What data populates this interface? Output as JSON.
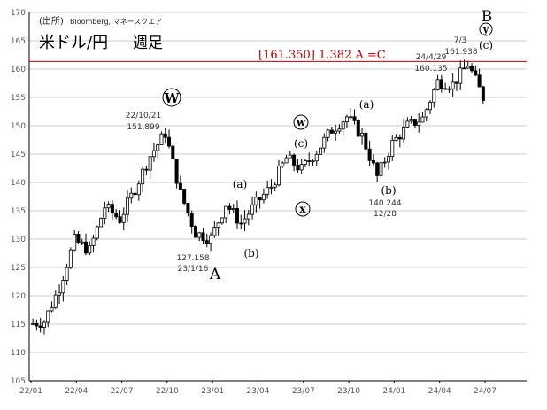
{
  "header": {
    "source_prefix": "(出所)",
    "source_names": "Bloomberg, マネースクエア",
    "title": "米ドル/円",
    "title_period": "週足",
    "resistance_label": "[161.350] 1.382 A =C"
  },
  "colors": {
    "candle": "#000000",
    "resistance_line": "#c00000",
    "resistance_text": "#c00000",
    "grid": "#bfbfbf"
  },
  "chart_data": {
    "type": "candlestick",
    "title": "米ドル/円 週足",
    "x_tick_labels": [
      "22/01",
      "22/04",
      "22/07",
      "22/10",
      "23/01",
      "23/04",
      "23/07",
      "23/10",
      "24/01",
      "24/04",
      "24/07"
    ],
    "ylim": [
      105,
      170
    ],
    "y_ticks": [
      105,
      110,
      115,
      120,
      125,
      130,
      135,
      140,
      145,
      150,
      155,
      160,
      165,
      170
    ],
    "grid": "horizontal",
    "resistance_level": 161.35,
    "series": [
      {
        "x": [
          "22/01",
          "22/02",
          "22/03",
          "22/04",
          "22/05",
          "22/06",
          "22/07",
          "22/08",
          "22/09",
          "22/10",
          "22/11",
          "22/12",
          "23/01",
          "23/02",
          "23/03",
          "23/04",
          "23/05",
          "23/06",
          "23/07",
          "23/08",
          "23/09",
          "23/10",
          "23/11",
          "23/12",
          "24/01",
          "24/02",
          "24/03",
          "24/04",
          "24/05",
          "24/06",
          "24/07"
        ],
        "values": [
          115.0,
          115.5,
          121.5,
          129.8,
          128.0,
          135.7,
          133.5,
          138.9,
          144.7,
          148.7,
          138.1,
          131.1,
          130.1,
          136.2,
          132.8,
          136.3,
          139.3,
          144.3,
          142.3,
          145.5,
          149.3,
          151.6,
          148.2,
          141.0,
          146.9,
          150.0,
          151.3,
          157.8,
          157.3,
          160.9,
          155.0
        ]
      }
    ],
    "annotations": {
      "wave_W": "W",
      "wave_W_date": "22/10/21",
      "wave_W_value": "151.899",
      "wave_A_date": "23/1/16",
      "wave_A_value": "127.158",
      "wave_A": "A",
      "wave_a1": "(a)",
      "wave_b1": "(b)",
      "wave_w_small": "w",
      "wave_c1": "(c)",
      "wave_x_small": "x",
      "wave_a2": "(a)",
      "wave_b2": "(b)",
      "wave_b2_value": "140.244",
      "wave_b2_date": "12/28",
      "peak_date": "24/4/29",
      "peak_value": "160.135",
      "top_date": "7/3",
      "top_value": "161.938",
      "wave_c2": "(c)",
      "wave_y_small": "y",
      "wave_B": "B"
    }
  }
}
